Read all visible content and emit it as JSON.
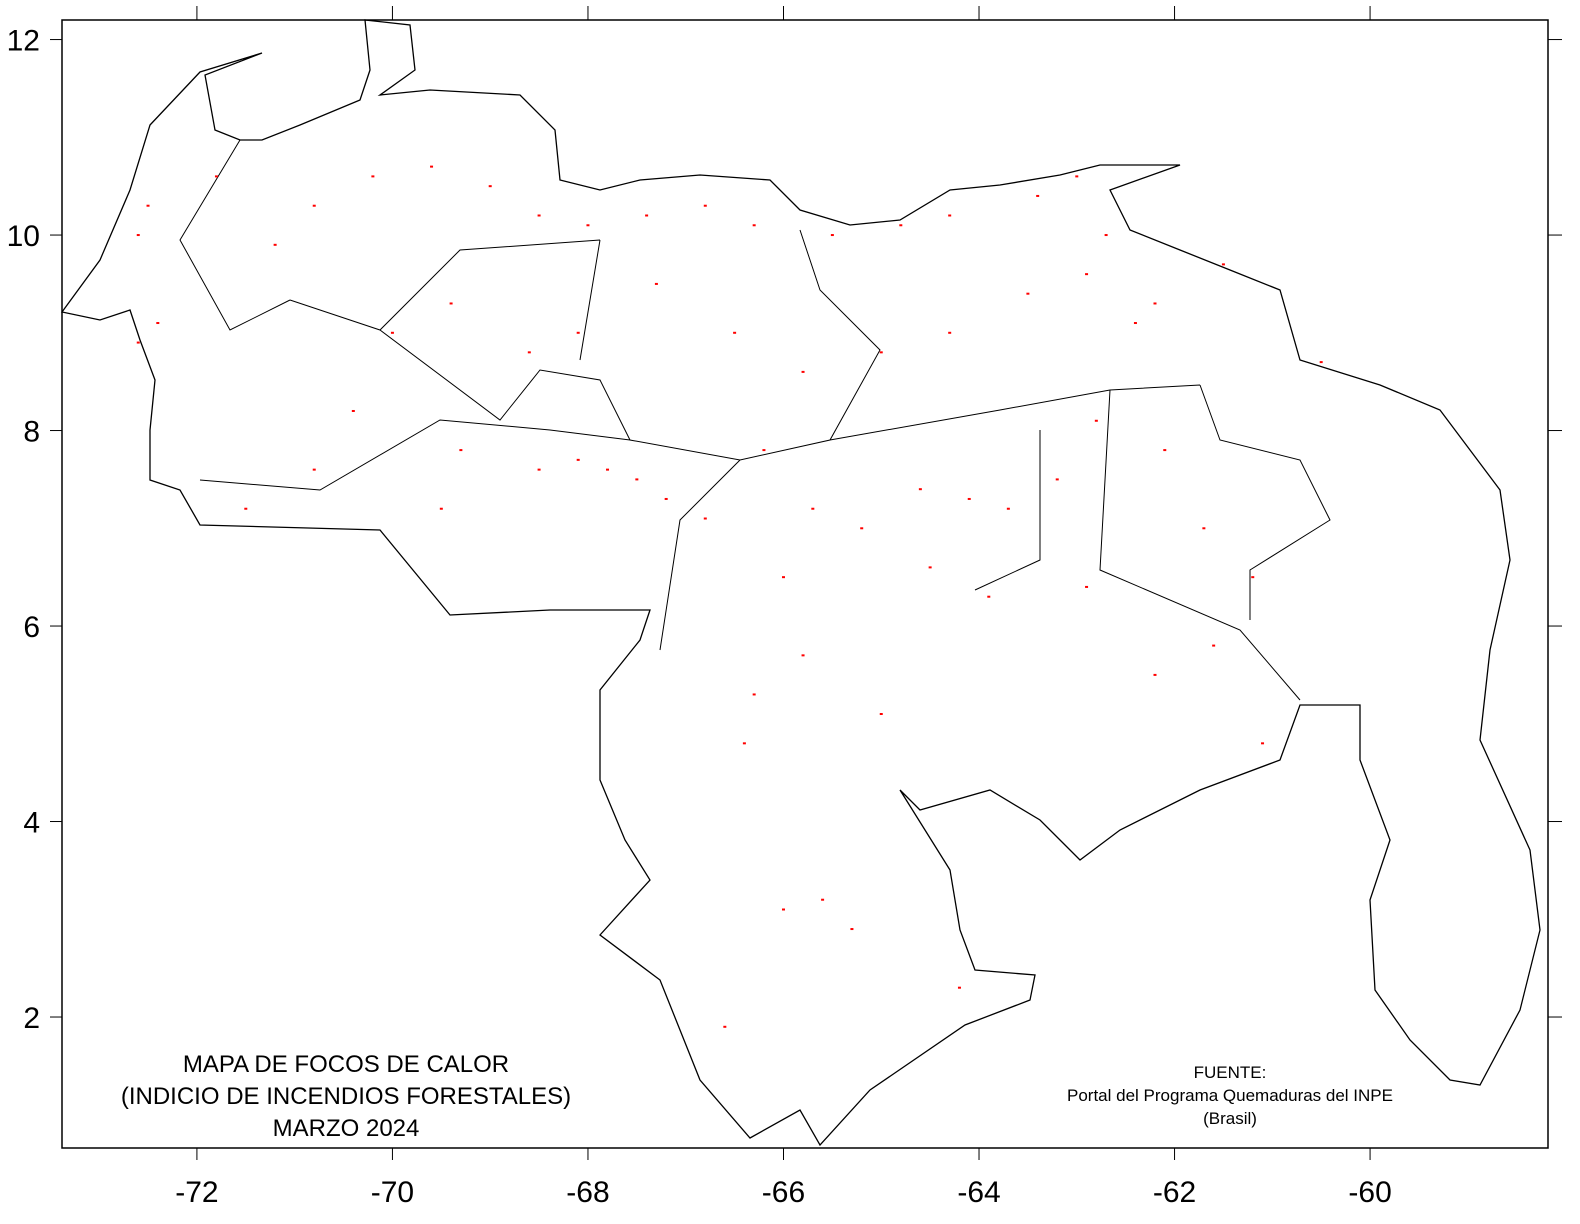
{
  "chart_data": {
    "type": "scatter",
    "title": [
      "MAPA DE FOCOS DE CALOR",
      "(INDICIO DE INCENDIOS FORESTALES)",
      "MARZO 2024"
    ],
    "annotations": [
      "FUENTE:",
      "Portal del Programa Quemaduras del INPE",
      "(Brasil)"
    ],
    "xlim": [
      -73.38,
      -58.18
    ],
    "ylim": [
      0.66,
      12.2
    ],
    "xticks": [
      -72,
      -70,
      -68,
      -66,
      -64,
      -62,
      -60
    ],
    "yticks": [
      2,
      4,
      6,
      8,
      10,
      12
    ],
    "series": [
      {
        "color": "#ff0000",
        "x": [
          -72.5,
          -72.6,
          -72.4,
          -72.6,
          -71.8,
          -71.2,
          -70.8,
          -70.2,
          -69.6,
          -69.0,
          -68.5,
          -68.0,
          -67.4,
          -66.8,
          -66.3,
          -65.5,
          -64.8,
          -64.3,
          -63.4,
          -63.0,
          -62.7,
          -62.2,
          -62.4,
          -62.9,
          -63.5,
          -64.3,
          -65.0,
          -65.8,
          -66.5,
          -67.3,
          -68.1,
          -68.6,
          -69.4,
          -70.0,
          -70.4,
          -69.3,
          -68.5,
          -68.1,
          -67.8,
          -67.5,
          -67.2,
          -66.8,
          -66.2,
          -65.7,
          -65.2,
          -64.6,
          -64.1,
          -63.7,
          -63.2,
          -62.8,
          -62.1,
          -61.7,
          -61.2,
          -62.9,
          -63.9,
          -64.5,
          -66.0,
          -66.3,
          -66.4,
          -65.8,
          -65.0,
          -62.2,
          -61.6,
          -61.1,
          -69.5,
          -70.8,
          -71.5,
          -60.5,
          -61.5,
          -65.6,
          -66.0,
          -65.3,
          -64.2,
          -66.6
        ],
        "y": [
          10.3,
          10.0,
          9.1,
          8.9,
          10.6,
          9.9,
          10.3,
          10.6,
          10.7,
          10.5,
          10.2,
          10.1,
          10.2,
          10.3,
          10.1,
          10.0,
          10.1,
          10.2,
          10.4,
          10.6,
          10.0,
          9.3,
          9.1,
          9.6,
          9.4,
          9.0,
          8.8,
          8.6,
          9.0,
          9.5,
          9.0,
          8.8,
          9.3,
          9.0,
          8.2,
          7.8,
          7.6,
          7.7,
          7.6,
          7.5,
          7.3,
          7.1,
          7.8,
          7.2,
          7.0,
          7.4,
          7.3,
          7.2,
          7.5,
          8.1,
          7.8,
          7.0,
          6.5,
          6.4,
          6.3,
          6.6,
          6.5,
          5.3,
          4.8,
          5.7,
          5.1,
          5.5,
          5.8,
          4.8,
          7.2,
          7.6,
          7.2,
          8.7,
          9.7,
          3.2,
          3.1,
          2.9,
          2.3,
          1.9
        ]
      }
    ]
  }
}
